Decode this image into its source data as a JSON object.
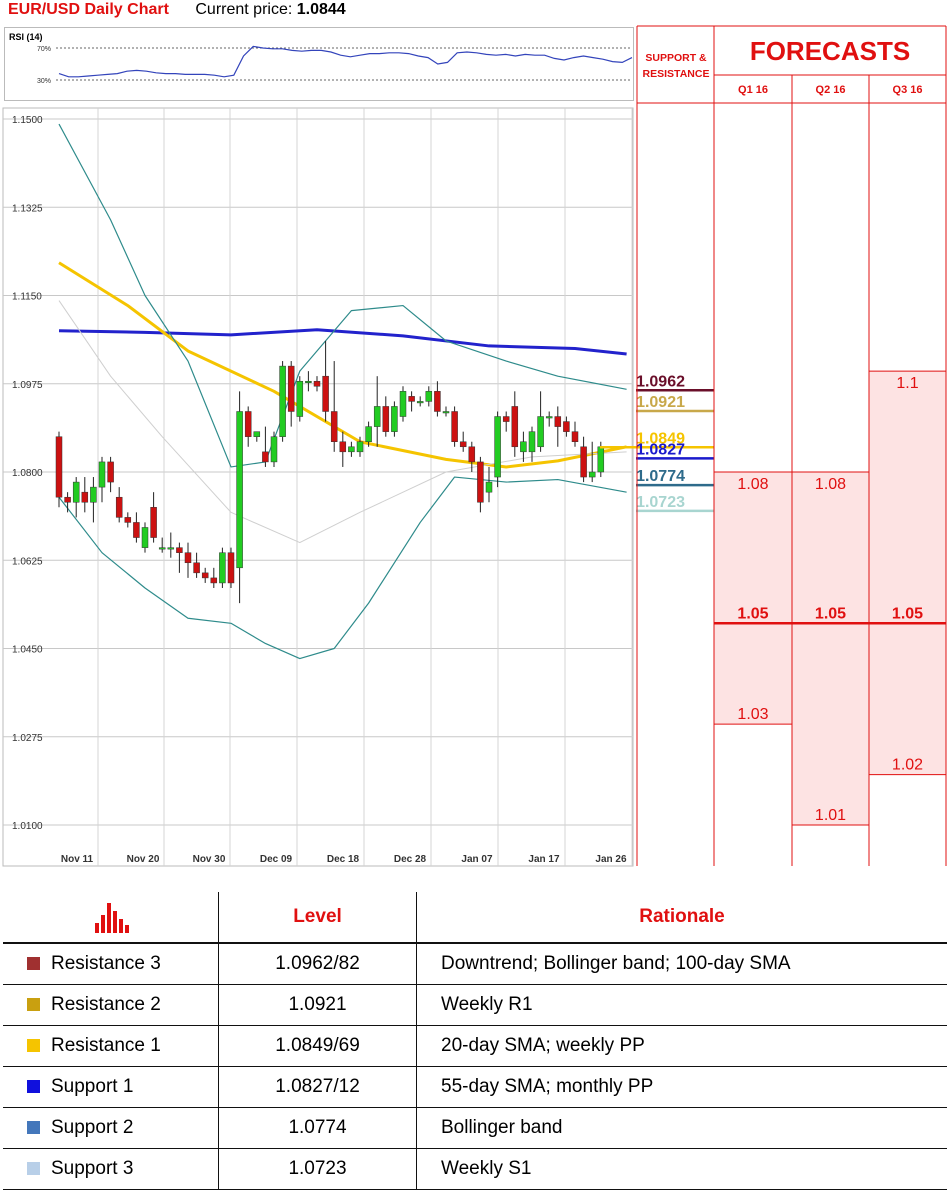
{
  "header": {
    "title": "EUR/USD Daily Chart",
    "price_label": "Current price: ",
    "price_value": "1.0844"
  },
  "rsi": {
    "label": "RSI (14)",
    "level_high": "70%",
    "level_low": "30%",
    "values": [
      38,
      34,
      34,
      35,
      36,
      37,
      38,
      41,
      42,
      41,
      39,
      38,
      38,
      37,
      37,
      37,
      36,
      34,
      36,
      60,
      72,
      70,
      69,
      69,
      67,
      66,
      67,
      67,
      65,
      61,
      59,
      61,
      63,
      63,
      64,
      64,
      63,
      60,
      58,
      50,
      52,
      64,
      65,
      64,
      62,
      61,
      62,
      60,
      62,
      61,
      61,
      57,
      55,
      58,
      60,
      58,
      56,
      53,
      52,
      58
    ]
  },
  "chart_data": {
    "type": "candlestick",
    "title": "EUR/USD Daily Chart",
    "ylim": [
      1.008,
      1.15
    ],
    "y_ticks": [
      "1.1500",
      "1.1325",
      "1.1150",
      "1.0975",
      "1.0800",
      "1.0625",
      "1.0450",
      "1.0275",
      "1.0100"
    ],
    "x_ticks": [
      "Nov 11",
      "Nov 20",
      "Nov 30",
      "Dec 09",
      "Dec 18",
      "Dec 28",
      "Jan 07",
      "Jan 17",
      "Jan 26"
    ],
    "candles": [
      [
        1.087,
        1.088,
        1.073,
        1.075
      ],
      [
        1.075,
        1.076,
        1.072,
        1.074
      ],
      [
        1.074,
        1.079,
        1.071,
        1.078
      ],
      [
        1.076,
        1.079,
        1.072,
        1.074
      ],
      [
        1.074,
        1.079,
        1.07,
        1.077
      ],
      [
        1.077,
        1.083,
        1.074,
        1.082
      ],
      [
        1.082,
        1.083,
        1.076,
        1.078
      ],
      [
        1.075,
        1.077,
        1.07,
        1.071
      ],
      [
        1.071,
        1.072,
        1.069,
        1.07
      ],
      [
        1.07,
        1.072,
        1.066,
        1.067
      ],
      [
        1.065,
        1.07,
        1.064,
        1.069
      ],
      [
        1.073,
        1.076,
        1.066,
        1.067
      ],
      [
        1.065,
        1.067,
        1.064,
        1.065
      ],
      [
        1.065,
        1.068,
        1.063,
        1.065
      ],
      [
        1.065,
        1.066,
        1.06,
        1.064
      ],
      [
        1.064,
        1.066,
        1.059,
        1.062
      ],
      [
        1.062,
        1.064,
        1.059,
        1.06
      ],
      [
        1.06,
        1.061,
        1.058,
        1.059
      ],
      [
        1.059,
        1.061,
        1.057,
        1.058
      ],
      [
        1.058,
        1.065,
        1.057,
        1.064
      ],
      [
        1.064,
        1.065,
        1.057,
        1.058
      ],
      [
        1.061,
        1.096,
        1.054,
        1.092
      ],
      [
        1.092,
        1.093,
        1.085,
        1.087
      ],
      [
        1.087,
        1.088,
        1.086,
        1.088
      ],
      [
        1.084,
        1.089,
        1.081,
        1.082
      ],
      [
        1.082,
        1.088,
        1.081,
        1.087
      ],
      [
        1.087,
        1.102,
        1.086,
        1.101
      ],
      [
        1.101,
        1.102,
        1.089,
        1.092
      ],
      [
        1.091,
        1.099,
        1.09,
        1.098
      ],
      [
        1.098,
        1.1,
        1.096,
        1.098
      ],
      [
        1.098,
        1.099,
        1.096,
        1.097
      ],
      [
        1.099,
        1.106,
        1.09,
        1.092
      ],
      [
        1.092,
        1.102,
        1.084,
        1.086
      ],
      [
        1.086,
        1.088,
        1.081,
        1.084
      ],
      [
        1.084,
        1.086,
        1.083,
        1.085
      ],
      [
        1.084,
        1.087,
        1.083,
        1.086
      ],
      [
        1.086,
        1.09,
        1.085,
        1.089
      ],
      [
        1.089,
        1.099,
        1.085,
        1.093
      ],
      [
        1.093,
        1.095,
        1.087,
        1.088
      ],
      [
        1.088,
        1.094,
        1.087,
        1.093
      ],
      [
        1.091,
        1.097,
        1.09,
        1.096
      ],
      [
        1.095,
        1.096,
        1.092,
        1.094
      ],
      [
        1.094,
        1.095,
        1.093,
        1.094
      ],
      [
        1.094,
        1.097,
        1.093,
        1.096
      ],
      [
        1.096,
        1.098,
        1.091,
        1.092
      ],
      [
        1.092,
        1.093,
        1.091,
        1.092
      ],
      [
        1.092,
        1.093,
        1.085,
        1.086
      ],
      [
        1.086,
        1.088,
        1.084,
        1.085
      ],
      [
        1.085,
        1.086,
        1.08,
        1.082
      ],
      [
        1.082,
        1.083,
        1.072,
        1.074
      ],
      [
        1.076,
        1.081,
        1.074,
        1.078
      ],
      [
        1.079,
        1.092,
        1.077,
        1.091
      ],
      [
        1.091,
        1.092,
        1.088,
        1.09
      ],
      [
        1.093,
        1.096,
        1.083,
        1.085
      ],
      [
        1.084,
        1.088,
        1.082,
        1.086
      ],
      [
        1.084,
        1.089,
        1.082,
        1.088
      ],
      [
        1.085,
        1.096,
        1.084,
        1.091
      ],
      [
        1.091,
        1.092,
        1.089,
        1.091
      ],
      [
        1.091,
        1.093,
        1.085,
        1.089
      ],
      [
        1.09,
        1.091,
        1.087,
        1.088
      ],
      [
        1.088,
        1.09,
        1.085,
        1.086
      ],
      [
        1.085,
        1.087,
        1.078,
        1.079
      ],
      [
        1.079,
        1.086,
        1.078,
        1.08
      ],
      [
        1.08,
        1.086,
        1.079,
        1.085
      ]
    ],
    "series": [
      {
        "color": "#2222cc",
        "values": [
          [
            0,
            1.108
          ],
          [
            10,
            1.1077
          ],
          [
            20,
            1.1072
          ],
          [
            30,
            1.1082
          ],
          [
            40,
            1.107
          ],
          [
            50,
            1.105
          ],
          [
            60,
            1.1045
          ],
          [
            66,
            1.1034
          ]
        ]
      },
      {
        "color": "#f5c400",
        "values": [
          [
            0,
            1.1215
          ],
          [
            8,
            1.113
          ],
          [
            15,
            1.104
          ],
          [
            25,
            1.096
          ],
          [
            35,
            1.086
          ],
          [
            45,
            1.0825
          ],
          [
            52,
            1.081
          ],
          [
            58,
            1.0822
          ],
          [
            66,
            1.085
          ]
        ]
      },
      {
        "color": "#cfcfcf",
        "values": [
          [
            0,
            1.114
          ],
          [
            6,
            1.099
          ],
          [
            12,
            1.087
          ],
          [
            20,
            1.072
          ],
          [
            28,
            1.066
          ],
          [
            35,
            1.072
          ],
          [
            45,
            1.08
          ],
          [
            55,
            1.083
          ],
          [
            66,
            1.084
          ]
        ]
      },
      {
        "color": "#2e8b8b",
        "values": [
          [
            0,
            1.149
          ],
          [
            6,
            1.13
          ],
          [
            10,
            1.115
          ],
          [
            15,
            1.102
          ],
          [
            20,
            1.081
          ],
          [
            24,
            1.082
          ],
          [
            28,
            1.1
          ],
          [
            34,
            1.112
          ],
          [
            40,
            1.113
          ],
          [
            45,
            1.106
          ],
          [
            52,
            1.102
          ],
          [
            58,
            1.099
          ],
          [
            66,
            1.0964
          ]
        ]
      },
      {
        "color": "#2e8b8b",
        "values": [
          [
            0,
            1.075
          ],
          [
            5,
            1.064
          ],
          [
            10,
            1.057
          ],
          [
            15,
            1.051
          ],
          [
            20,
            1.05
          ],
          [
            24,
            1.046
          ],
          [
            28,
            1.043
          ],
          [
            32,
            1.045
          ],
          [
            36,
            1.054
          ],
          [
            42,
            1.07
          ],
          [
            46,
            1.079
          ],
          [
            52,
            1.078
          ],
          [
            58,
            1.0785
          ],
          [
            66,
            1.076
          ]
        ]
      }
    ],
    "sr_levels": [
      {
        "label": "1.0962",
        "value": 1.0962,
        "color": "#6a0f2a"
      },
      {
        "label": "1.0921",
        "value": 1.0921,
        "color": "#c8a84a"
      },
      {
        "label": "1.0849",
        "value": 1.0849,
        "color": "#f5c400"
      },
      {
        "label": "1.0827",
        "value": 1.0827,
        "color": "#1a1acc"
      },
      {
        "label": "1.0774",
        "value": 1.0774,
        "color": "#2e6b8b"
      },
      {
        "label": "1.0723",
        "value": 1.0723,
        "color": "#a8d5d0"
      }
    ],
    "forecasts": [
      {
        "label": "Q1 16",
        "high": 1.08,
        "mid": 1.05,
        "low": 1.03,
        "high_label": "1.08",
        "mid_label": "1.05",
        "low_label": "1.03"
      },
      {
        "label": "Q2 16",
        "high": 1.08,
        "mid": 1.05,
        "low": 1.01,
        "high_label": "1.08",
        "mid_label": "1.05",
        "low_label": "1.01"
      },
      {
        "label": "Q3 16",
        "high": 1.1,
        "mid": 1.05,
        "low": 1.02,
        "high_label": "1.1",
        "mid_label": "1.05",
        "low_label": "1.02"
      }
    ],
    "colors": {
      "up": "#22cc22",
      "down": "#cc1111",
      "forecast": "#e01010"
    }
  },
  "panel": {
    "sr_title_line1": "SUPPORT &",
    "sr_title_line2": "RESISTANCE",
    "forecasts_title": "FORECASTS"
  },
  "levels_table": {
    "headers": {
      "level": "Level",
      "rationale": "Rationale"
    },
    "rows": [
      {
        "name": "Resistance 3",
        "level": "1.0962/82",
        "rationale": "Downtrend; Bollinger band; 100-day SMA",
        "color": "#a03030"
      },
      {
        "name": "Resistance 2",
        "level": "1.0921",
        "rationale": "Weekly R1",
        "color": "#c9a010"
      },
      {
        "name": "Resistance 1",
        "level": "1.0849/69",
        "rationale": "20-day SMA; weekly PP",
        "color": "#f5c400"
      },
      {
        "name": "Support 1",
        "level": "1.0827/12",
        "rationale": "55-day SMA; monthly PP",
        "color": "#1010dd"
      },
      {
        "name": "Support 2",
        "level": "1.0774",
        "rationale": "Bollinger band",
        "color": "#4477bb"
      },
      {
        "name": "Support 3",
        "level": "1.0723",
        "rationale": "Weekly S1",
        "color": "#b8cfe8"
      }
    ]
  }
}
